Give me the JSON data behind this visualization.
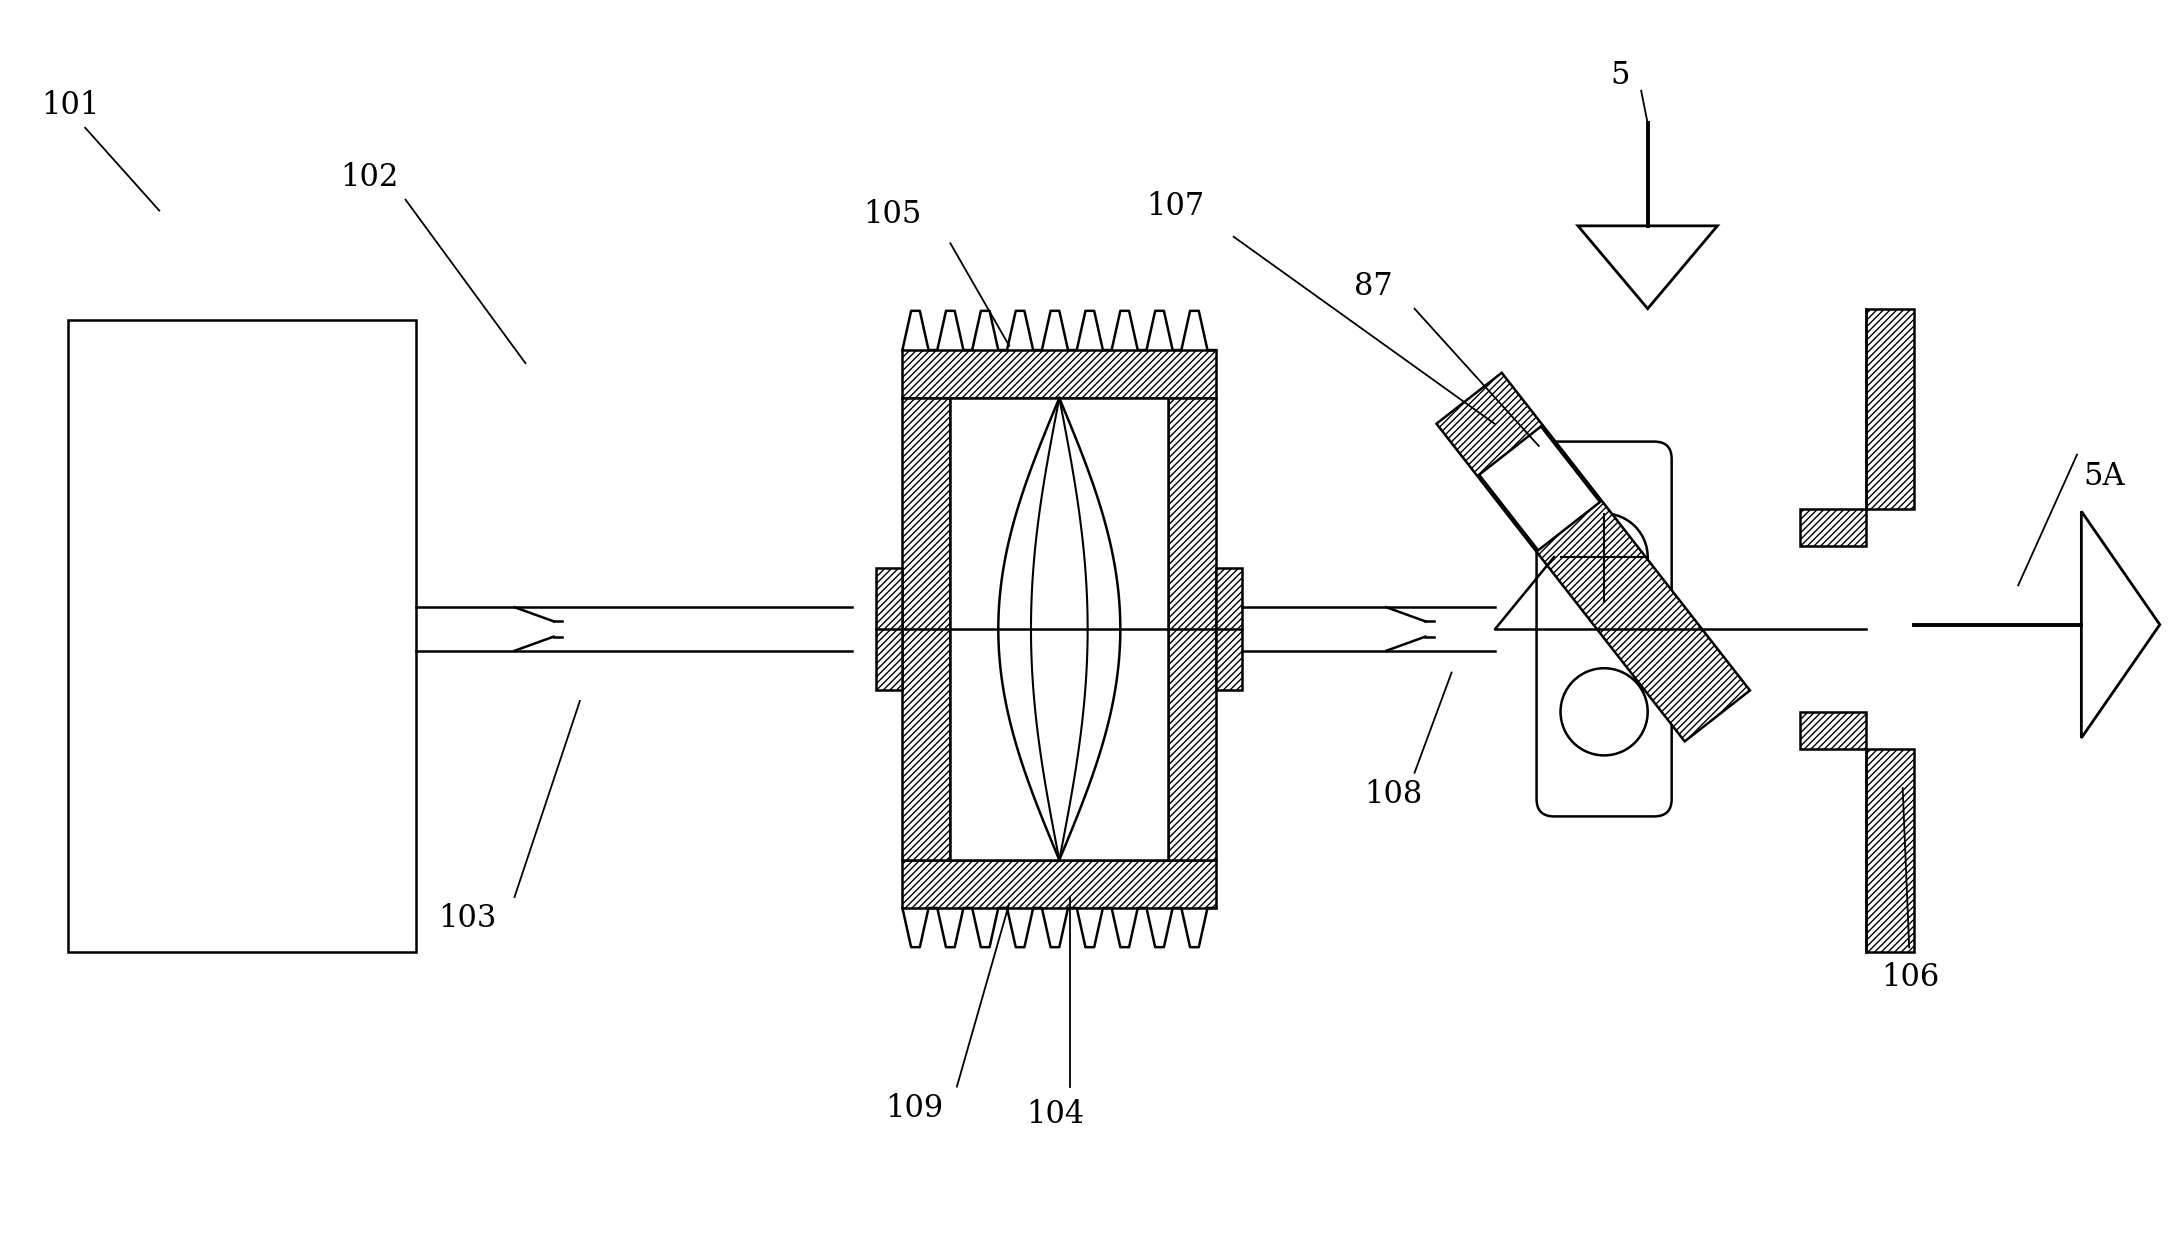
{
  "bg_color": "#ffffff",
  "line_color": "#000000",
  "fig_width": 21.84,
  "fig_height": 12.58
}
